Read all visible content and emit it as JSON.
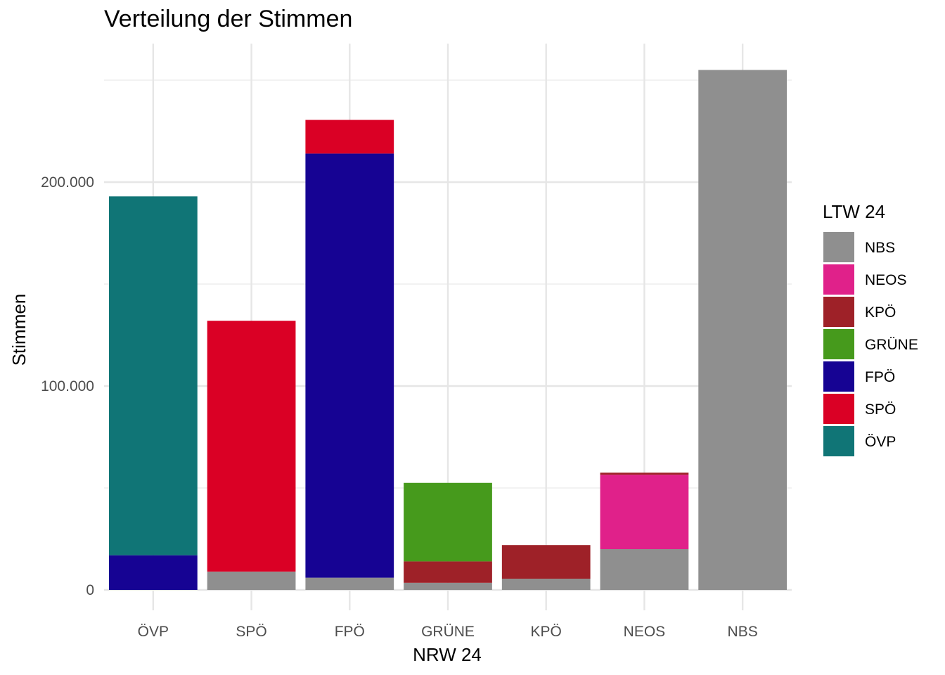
{
  "chart_data": {
    "type": "bar",
    "stacked": true,
    "title": "Verteilung der Stimmen",
    "xlabel": "NRW 24",
    "ylabel": "Stimmen",
    "categories": [
      "ÖVP",
      "SPÖ",
      "FPÖ",
      "GRÜNE",
      "KPÖ",
      "NEOS",
      "NBS"
    ],
    "ylim": [
      0,
      260000
    ],
    "yticks": [
      0,
      100000,
      200000
    ],
    "ytick_labels": [
      "0",
      "100.000",
      "200.000"
    ],
    "grid": true,
    "legend": {
      "title": "LTW 24",
      "position": "right",
      "items": [
        {
          "label": "NBS",
          "color": "#8f8f8f"
        },
        {
          "label": "NEOS",
          "color": "#e0218a"
        },
        {
          "label": "KPÖ",
          "color": "#9e2128"
        },
        {
          "label": "GRÜNE",
          "color": "#469a1c"
        },
        {
          "label": "FPÖ",
          "color": "#160393"
        },
        {
          "label": "SPÖ",
          "color": "#da0025"
        },
        {
          "label": "ÖVP",
          "color": "#107576"
        }
      ]
    },
    "series": [
      {
        "name": "NBS",
        "color": "#8f8f8f",
        "values": [
          0,
          9000,
          6000,
          3500,
          5500,
          20000,
          255000
        ]
      },
      {
        "name": "NEOS",
        "color": "#e0218a",
        "values": [
          0,
          0,
          0,
          0,
          0,
          36500,
          0
        ]
      },
      {
        "name": "KPÖ",
        "color": "#9e2128",
        "values": [
          0,
          0,
          0,
          10500,
          16500,
          1000,
          0
        ]
      },
      {
        "name": "GRÜNE",
        "color": "#469a1c",
        "values": [
          0,
          0,
          0,
          38500,
          0,
          0,
          0
        ]
      },
      {
        "name": "FPÖ",
        "color": "#160393",
        "values": [
          17000,
          0,
          208000,
          0,
          0,
          0,
          0
        ]
      },
      {
        "name": "SPÖ",
        "color": "#da0025",
        "values": [
          0,
          123000,
          16500,
          0,
          0,
          0,
          0
        ]
      },
      {
        "name": "ÖVP",
        "color": "#107576",
        "values": [
          176000,
          0,
          0,
          0,
          0,
          0,
          0
        ]
      }
    ]
  }
}
